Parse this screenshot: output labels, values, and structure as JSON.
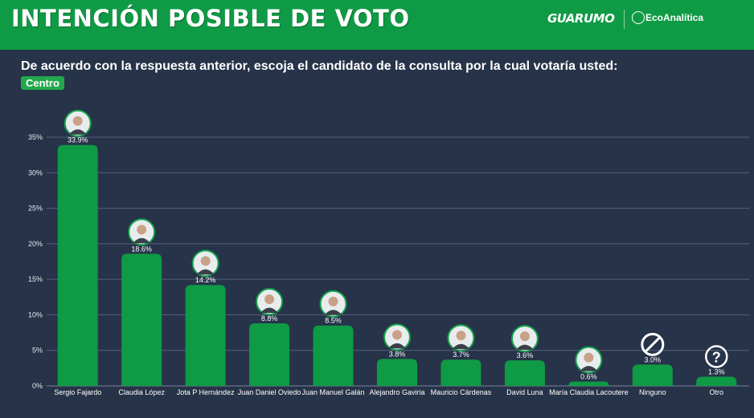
{
  "header": {
    "title": "INTENCIÓN POSIBLE DE VOTO",
    "logo_guarumo": "GUARUMO",
    "logo_eco": "EcoAnalítica"
  },
  "question": "De acuerdo con la respuesta anterior, escoja el candidato de la consulta por la cual votaría usted:",
  "badge": "Centro",
  "colors": {
    "bar": "#0f9a45",
    "header": "#0f9a45",
    "background": "#273349",
    "grid": "#56627a"
  },
  "chart_data": {
    "type": "bar",
    "categories": [
      "Sergio Fajardo",
      "Claudia López",
      "Jota P Hernández",
      "Juan Daniel Oviedo",
      "Juan Manuel Galán",
      "Alejandro Gaviria",
      "Mauricio Cárdenas",
      "David Luna",
      "María Claudia Lacoutere",
      "Ninguno",
      "Otro"
    ],
    "values": [
      33.9,
      18.6,
      14.2,
      8.8,
      8.5,
      3.8,
      3.7,
      3.6,
      0.6,
      3.0,
      1.3
    ],
    "value_labels": [
      "33.9%",
      "18.6%",
      "14.2%",
      "8.8%",
      "8.5%",
      "3.8%",
      "3.7%",
      "3.6%",
      "0.6%",
      "3.0%",
      "1.3%"
    ],
    "markers": [
      "photo",
      "photo",
      "photo",
      "photo",
      "photo",
      "photo",
      "photo",
      "photo",
      "photo",
      "ban-icon",
      "question-icon"
    ],
    "ylim": [
      0,
      35
    ],
    "yticks": [
      0,
      5,
      10,
      15,
      20,
      25,
      30,
      35
    ],
    "ytick_labels": [
      "0%",
      "5%",
      "10%",
      "15%",
      "20%",
      "25%",
      "30%",
      "35%"
    ],
    "grid": true
  }
}
